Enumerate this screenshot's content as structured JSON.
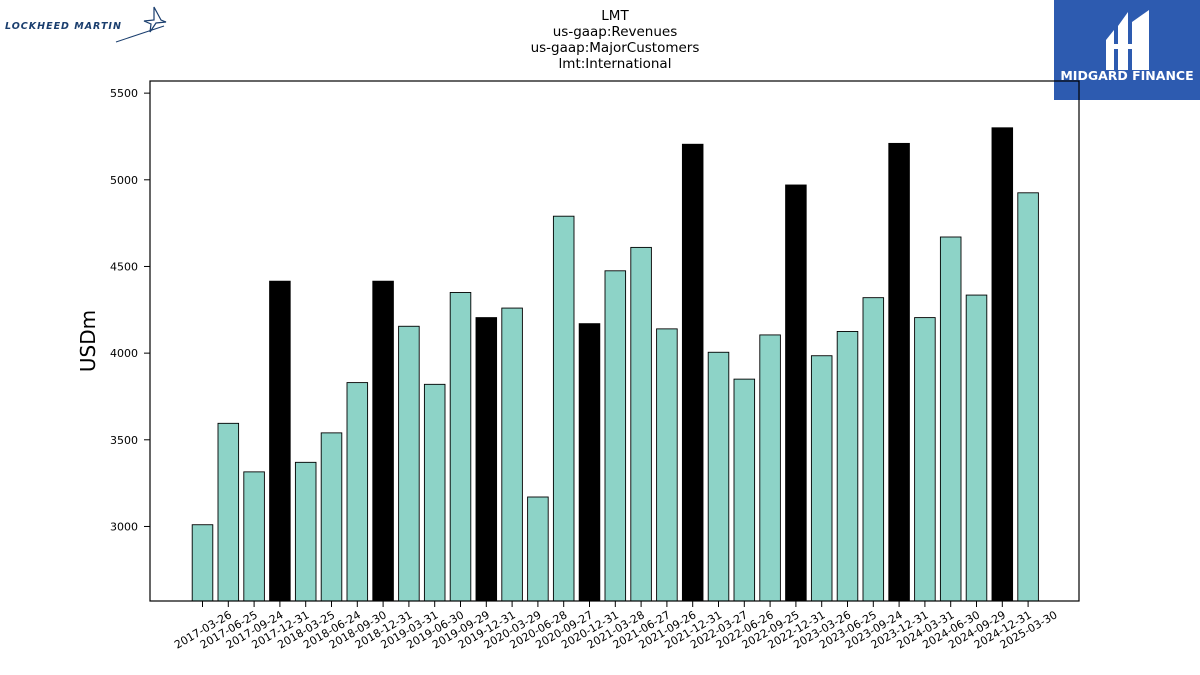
{
  "brand": {
    "left_logo_text": "LOCKHEED MARTIN",
    "right_logo_text": "MIDGARD FINANCE",
    "right_logo_bg": "#2d5bb0"
  },
  "chart_data": {
    "type": "bar",
    "title_lines": [
      "LMT",
      "us-gaap:Revenues",
      "us-gaap:MajorCustomers",
      "lmt:International"
    ],
    "xlabel": "",
    "ylabel": "USDm",
    "ylim": [
      2570,
      5570
    ],
    "yticks": [
      3000,
      3500,
      4000,
      4500,
      5000,
      5500
    ],
    "colors": {
      "quarter": "#8dd3c7",
      "annual": "#000000",
      "edge": "#000000"
    },
    "categories": [
      "2017-03-26",
      "2017-06-25",
      "2017-09-24",
      "2017-12-31",
      "2018-03-25",
      "2018-06-24",
      "2018-09-30",
      "2018-12-31",
      "2019-03-31",
      "2019-06-30",
      "2019-09-29",
      "2019-12-31",
      "2020-03-29",
      "2020-06-28",
      "2020-09-27",
      "2020-12-31",
      "2021-03-28",
      "2021-06-27",
      "2021-09-26",
      "2021-12-31",
      "2022-03-27",
      "2022-06-26",
      "2022-09-25",
      "2022-12-31",
      "2023-03-26",
      "2023-06-25",
      "2023-09-24",
      "2023-12-31",
      "2024-03-31",
      "2024-06-30",
      "2024-09-29",
      "2024-12-31",
      "2025-03-30"
    ],
    "values": [
      3010,
      3595,
      3315,
      4415,
      3370,
      3540,
      3830,
      4415,
      4155,
      3820,
      4350,
      4205,
      4260,
      3170,
      4790,
      4170,
      4475,
      4610,
      4140,
      5205,
      4005,
      3850,
      4105,
      4970,
      3985,
      4125,
      4320,
      5210,
      4205,
      4670,
      4335,
      5300,
      4925
    ],
    "is_annual": [
      false,
      false,
      false,
      true,
      false,
      false,
      false,
      true,
      false,
      false,
      false,
      true,
      false,
      false,
      false,
      true,
      false,
      false,
      false,
      true,
      false,
      false,
      false,
      true,
      false,
      false,
      false,
      true,
      false,
      false,
      false,
      true,
      false
    ]
  }
}
